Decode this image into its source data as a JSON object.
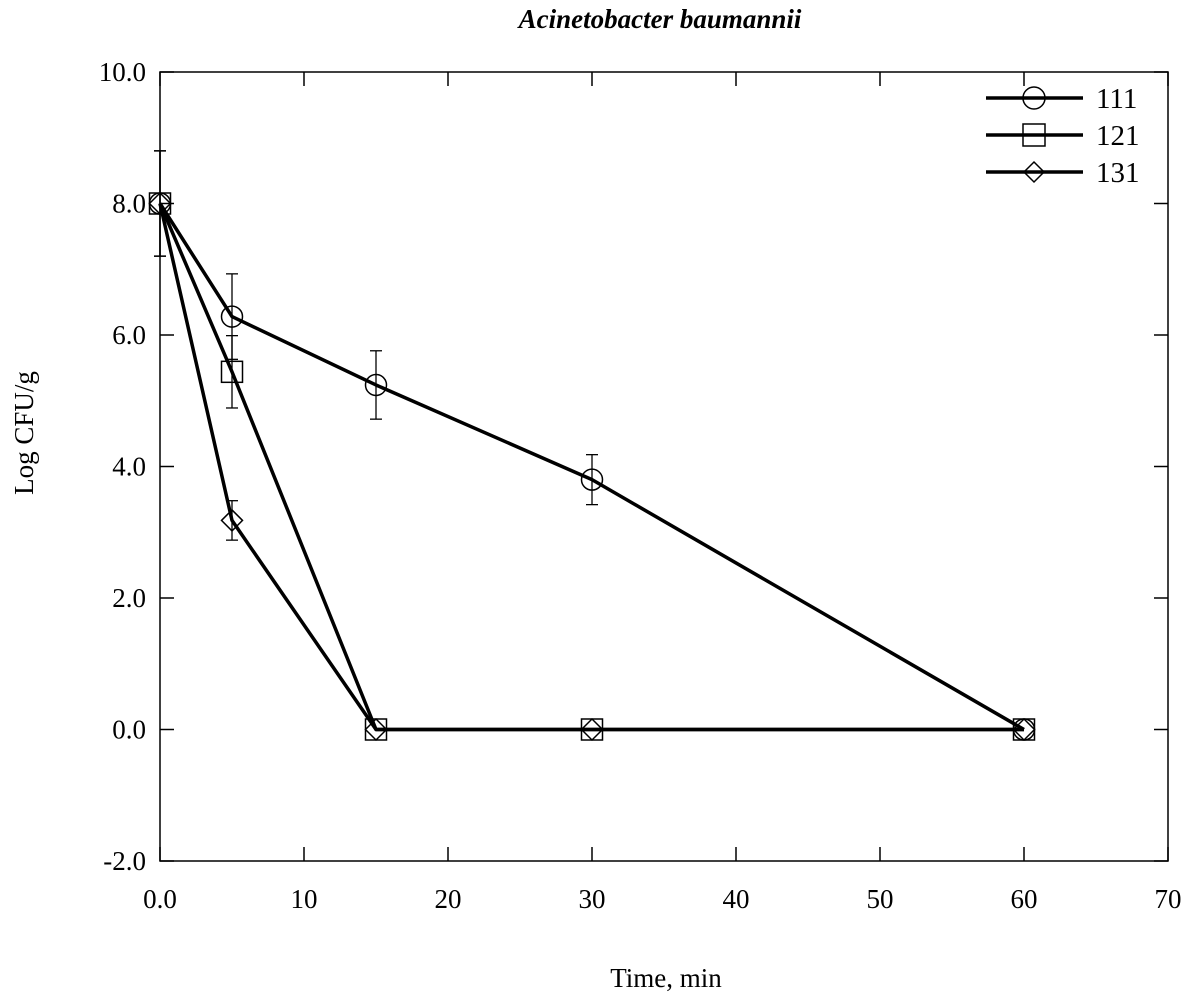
{
  "chart_data": {
    "type": "line",
    "title": "Acinetobacter baumannii",
    "xlabel": "Time, min",
    "ylabel": "Log CFU/g",
    "xlim": [
      0,
      70
    ],
    "ylim": [
      -2,
      10
    ],
    "x_ticks": [
      0,
      10,
      20,
      30,
      40,
      50,
      60,
      70
    ],
    "x_tick_labels": [
      "0.0",
      "10",
      "20",
      "30",
      "40",
      "50",
      "60",
      "70"
    ],
    "y_ticks": [
      -2,
      0,
      2,
      4,
      6,
      8,
      10
    ],
    "y_tick_labels": [
      "-2.0",
      "0.0",
      "2.0",
      "4.0",
      "6.0",
      "8.0",
      "10.0"
    ],
    "grid": false,
    "legend_position": "top-right",
    "line_color": "#000000",
    "series": [
      {
        "name": "111",
        "marker": "circle",
        "x": [
          0,
          5,
          15,
          30,
          60
        ],
        "y": [
          8.0,
          6.28,
          5.24,
          3.8,
          0.0
        ],
        "error": [
          0.8,
          0.65,
          0.52,
          0.38,
          0.0
        ]
      },
      {
        "name": "121",
        "marker": "square",
        "x": [
          0,
          5,
          15,
          30,
          60
        ],
        "y": [
          8.0,
          5.44,
          0.0,
          0.0,
          0.0
        ],
        "error": [
          0.8,
          0.55,
          0.0,
          0.0,
          0.0
        ]
      },
      {
        "name": "131",
        "marker": "diamond",
        "x": [
          0,
          5,
          15,
          30,
          60
        ],
        "y": [
          8.0,
          3.18,
          0.0,
          0.0,
          0.0
        ],
        "error": [
          0.8,
          0.3,
          0.0,
          0.0,
          0.0
        ]
      }
    ]
  }
}
